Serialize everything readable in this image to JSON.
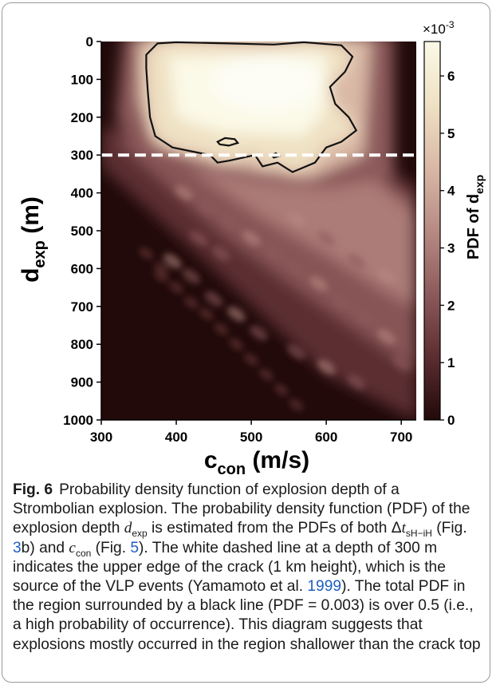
{
  "chart_data": {
    "type": "heatmap",
    "xlabel_main": "c",
    "xlabel_sub": "con",
    "xlabel_unit": " (m/s)",
    "ylabel_main": "d",
    "ylabel_sub": "exp",
    "ylabel_unit": " (m)",
    "xlim": [
      300,
      720
    ],
    "ylim": [
      0,
      1000
    ],
    "y_inverted": true,
    "x_ticks": [
      300,
      400,
      500,
      600,
      700
    ],
    "y_ticks": [
      0,
      100,
      200,
      300,
      400,
      500,
      600,
      700,
      800,
      900,
      1000
    ],
    "colorbar": {
      "label_main": "PDF of d",
      "label_sub": "exp",
      "exponent_label": "×10",
      "exponent": "-3",
      "range": [
        0,
        6.6
      ],
      "ticks": [
        0,
        1,
        2,
        3,
        4,
        5,
        6
      ],
      "colors": [
        "#220a0a",
        "#5c2d30",
        "#8d5a5b",
        "#b78a84",
        "#d9b8a6",
        "#efe1c3",
        "#fbf9e7"
      ]
    },
    "crack_top_depth": 300,
    "contour_level": 0.003,
    "contour_main": [
      [
        360,
        35
      ],
      [
        375,
        5
      ],
      [
        400,
        -5
      ],
      [
        470,
        5
      ],
      [
        530,
        8
      ],
      [
        570,
        -2
      ],
      [
        620,
        10
      ],
      [
        635,
        40
      ],
      [
        625,
        80
      ],
      [
        605,
        120
      ],
      [
        612,
        165
      ],
      [
        630,
        200
      ],
      [
        640,
        235
      ],
      [
        620,
        265
      ],
      [
        600,
        280
      ],
      [
        585,
        320
      ],
      [
        555,
        345
      ],
      [
        535,
        320
      ],
      [
        515,
        330
      ],
      [
        505,
        300
      ],
      [
        470,
        315
      ],
      [
        455,
        320
      ],
      [
        445,
        300
      ],
      [
        420,
        290
      ],
      [
        395,
        280
      ],
      [
        372,
        250
      ],
      [
        365,
        200
      ],
      [
        362,
        130
      ],
      [
        360,
        70
      ],
      [
        360,
        35
      ]
    ],
    "contour_island": [
      [
        455,
        265
      ],
      [
        465,
        255
      ],
      [
        478,
        258
      ],
      [
        482,
        268
      ],
      [
        470,
        275
      ],
      [
        458,
        272
      ],
      [
        455,
        265
      ]
    ],
    "contour_small": [
      [
        527,
        300
      ],
      [
        533,
        295
      ],
      [
        537,
        303
      ],
      [
        530,
        307
      ],
      [
        527,
        300
      ]
    ]
  },
  "caption": {
    "label": "Fig. 6",
    "s1": "Probability density function of explosion depth of a Strombolian explosion. The probability density function (PDF) of the explosion depth ",
    "d_sym": "d",
    "d_sub": "exp",
    "s2": " is estimated from the PDFs of both Δ",
    "t_sym": "t",
    "t_sub": "sH−iH",
    "s3": " (Fig. ",
    "ref1": "3",
    "s4": "b) and ",
    "c_sym": "c",
    "c_sub": "con",
    "s5": " (Fig. ",
    "ref2": "5",
    "s6": "). The white dashed line at a depth of 300 m indicates the upper edge of the crack (1 km height), which is the source of the VLP events (Yamamoto et al. ",
    "ref3": "1999",
    "s7": "). The total PDF in the region surrounded by a black line (PDF = 0.003) is over 0.5 (i.e., a high probability of occurrence). This diagram suggests that explosions mostly occurred in the region shallower than the crack top"
  }
}
